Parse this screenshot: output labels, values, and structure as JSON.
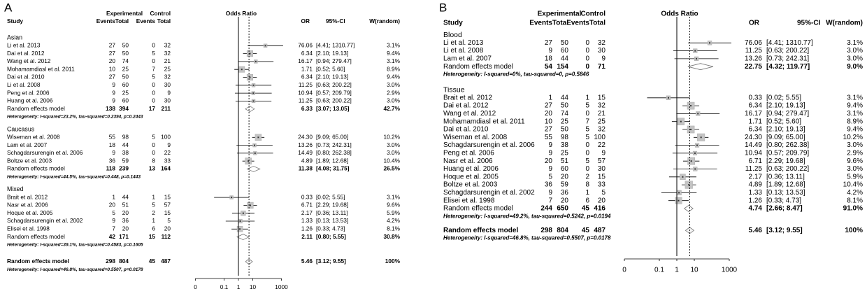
{
  "chart_data": [
    {
      "type": "forest",
      "panel": "A",
      "log_x": true,
      "highlight_color": "#e8564b",
      "box_color": "#c4c4c4",
      "header": {
        "study": "Study",
        "experimental": "Experimental",
        "control": "Control",
        "events": "Events",
        "total": "Total",
        "odds_ratio": "Odds Ratio",
        "or": "OR",
        "ci": "95%-CI",
        "weight": "W(random)"
      },
      "xlim": [
        0.001,
        1000
      ],
      "xticks": [
        {
          "value": 0.001,
          "label": "0"
        },
        0.1,
        1,
        10,
        1000
      ],
      "groups": [
        {
          "name": "Asian",
          "studies": [
            {
              "study": "Li et al. 2013",
              "ee": 27,
              "et": 50,
              "ce": 0,
              "ct": 32,
              "or": 76.06,
              "lo": 4.41,
              "hi": 1310.77,
              "ci_label": "[4.41; 1310.77]",
              "w": 3.1,
              "w_label": "3.1%"
            },
            {
              "study": "Dai et al. 2012",
              "ee": 27,
              "et": 50,
              "ce": 5,
              "ct": 32,
              "or": 6.34,
              "lo": 2.1,
              "hi": 19.13,
              "ci_label": "[2.10; 19.13]",
              "w": 9.4,
              "w_label": "9.4%"
            },
            {
              "study": "Wang et al. 2012",
              "ee": 20,
              "et": 74,
              "ce": 0,
              "ct": 21,
              "or": 16.17,
              "lo": 0.94,
              "hi": 279.47,
              "ci_label": "[0.94; 279.47]",
              "w": 3.1,
              "w_label": "3.1%"
            },
            {
              "study": "Mohamamdiasl et al. 2011",
              "ee": 10,
              "et": 25,
              "ce": 7,
              "ct": 25,
              "or": 1.71,
              "lo": 0.52,
              "hi": 5.6,
              "ci_label": "[0.52; 5.60]",
              "w": 8.9,
              "w_label": "8.9%"
            },
            {
              "study": "Dai et al. 2010",
              "ee": 27,
              "et": 50,
              "ce": 5,
              "ct": 32,
              "or": 6.34,
              "lo": 2.1,
              "hi": 19.13,
              "ci_label": "[2.10; 19.13]",
              "w": 9.4,
              "w_label": "9.4%"
            },
            {
              "study": "Li et al. 2008",
              "ee": 9,
              "et": 60,
              "ce": 0,
              "ct": 30,
              "or": 11.25,
              "lo": 0.63,
              "hi": 200.22,
              "ci_label": "[0.63; 200.22]",
              "w": 3.0,
              "w_label": "3.0%"
            },
            {
              "study": "Peng et al. 2006",
              "ee": 9,
              "et": 25,
              "ce": 0,
              "ct": 9,
              "or": 10.94,
              "lo": 0.57,
              "hi": 209.79,
              "ci_label": "[0.57; 209.79]",
              "w": 2.9,
              "w_label": "2.9%"
            },
            {
              "study": "Huang et al. 2006",
              "ee": 9,
              "et": 60,
              "ce": 0,
              "ct": 30,
              "or": 11.25,
              "lo": 0.63,
              "hi": 200.22,
              "ci_label": "[0.63; 200.22]",
              "w": 3.0,
              "w_label": "3.0%"
            }
          ],
          "random": {
            "study": "Random effects model",
            "ee": 138,
            "et": 394,
            "ce": 17,
            "ct": 211,
            "or": 6.33,
            "lo": 3.07,
            "hi": 13.05,
            "ci_label": "[3.07; 13.05]",
            "w": 42.7,
            "w_label": "42.7%"
          },
          "heterogeneity": "Heterogeneity: I-squared=23.2%, tau-squared=0.2394, p=0.2443"
        },
        {
          "name": "Caucasus",
          "studies": [
            {
              "study": "Wiseman et al. 2008",
              "ee": 55,
              "et": 98,
              "ce": 5,
              "ct": 100,
              "or": 24.3,
              "or_label": "24.30",
              "lo": 9.09,
              "hi": 65,
              "ci_label": "[9.09; 65.00]",
              "w": 10.2,
              "w_label": "10.2%"
            },
            {
              "study": "Lam et al. 2007",
              "ee": 18,
              "et": 44,
              "ce": 0,
              "ct": 9,
              "or": 13.26,
              "lo": 0.73,
              "hi": 242.31,
              "ci_label": "[0.73; 242.31]",
              "w": 3.0,
              "w_label": "3.0%"
            },
            {
              "study": "Schagdarsurengin et al. 2006",
              "ee": 9,
              "et": 38,
              "ce": 0,
              "ct": 22,
              "or": 14.49,
              "lo": 0.8,
              "hi": 262.38,
              "ci_label": "[0.80; 262.38]",
              "w": 3.0,
              "w_label": "3.0%"
            },
            {
              "study": "Boltze et al. 2003",
              "ee": 36,
              "et": 59,
              "ce": 8,
              "ct": 33,
              "or": 4.89,
              "lo": 1.89,
              "hi": 12.68,
              "ci_label": "[1.89; 12.68]",
              "w": 10.4,
              "w_label": "10.4%"
            }
          ],
          "random": {
            "study": "Random effects model",
            "ee": 118,
            "et": 239,
            "ce": 13,
            "ct": 164,
            "or": 11.38,
            "lo": 4.08,
            "hi": 31.75,
            "ci_label": "[4.08; 31.75]",
            "w": 26.5,
            "w_label": "26.5%"
          },
          "heterogeneity": "Heterogeneity: I-squared=44.5%, tau-squared=0.448, p=0.1443"
        },
        {
          "name": "Mixed",
          "studies": [
            {
              "study": "Brait et al. 2012",
              "ee": 1,
              "et": 44,
              "ce": 1,
              "ct": 15,
              "or": 0.33,
              "lo": 0.02,
              "hi": 5.55,
              "ci_label": "[0.02; 5.55]",
              "w": 3.1,
              "w_label": "3.1%"
            },
            {
              "study": "Nasr et al. 2006",
              "ee": 20,
              "et": 51,
              "ce": 5,
              "ct": 57,
              "or": 6.71,
              "lo": 2.29,
              "hi": 19.68,
              "ci_label": "[2.29; 19.68]",
              "w": 9.6,
              "w_label": "9.6%"
            },
            {
              "study": "Hoque et al. 2005",
              "ee": 5,
              "et": 20,
              "ce": 2,
              "ct": 15,
              "or": 2.17,
              "lo": 0.36,
              "hi": 13.11,
              "ci_label": "[0.36; 13.11]",
              "w": 5.9,
              "w_label": "5.9%"
            },
            {
              "study": "Schagdarsurengin et al. 2002",
              "ee": 9,
              "et": 36,
              "ce": 1,
              "ct": 5,
              "or": 1.33,
              "lo": 0.13,
              "hi": 13.53,
              "ci_label": "[0.13; 13.53]",
              "w": 4.2,
              "w_label": "4.2%"
            },
            {
              "study": "Elisei et al. 1998",
              "ee": 7,
              "et": 20,
              "ce": 6,
              "ct": 20,
              "or": 1.26,
              "lo": 0.33,
              "hi": 4.73,
              "ci_label": "[0.33; 4.73]",
              "w": 8.1,
              "w_label": "8.1%"
            }
          ],
          "random": {
            "study": "Random effects model",
            "ee": 42,
            "et": 171,
            "ce": 15,
            "ct": 112,
            "or": 2.11,
            "lo": 0.8,
            "hi": 5.55,
            "ci_label": "[0.80; 5.55]",
            "w": 30.8,
            "w_label": "30.8%"
          },
          "heterogeneity": "Heterogeneity: I-squared=39.1%, tau-squared=0.4583, p=0.1605"
        }
      ],
      "overall": {
        "study": "Random effects model",
        "ee": 298,
        "et": 804,
        "ce": 45,
        "ct": 487,
        "or": 5.46,
        "lo": 3.12,
        "hi": 9.55,
        "ci_label": "[3.12; 9.55]",
        "w": 100,
        "w_label": "100%"
      },
      "overall_heterogeneity": "Heterogeneity: I-squared=46.8%, tau-squared=0.5507, p=0.0178"
    },
    {
      "type": "forest",
      "panel": "B",
      "log_x": true,
      "highlight_color": "#e8564b",
      "box_color": "#c4c4c4",
      "header": {
        "study": "Study",
        "experimental": "Experimental",
        "control": "Control",
        "events": "Events",
        "total": "Total",
        "odds_ratio": "Odds Ratio",
        "or": "OR",
        "ci": "95%-CI",
        "weight": "W(random)"
      },
      "xlim": [
        0.001,
        1000
      ],
      "xticks": [
        {
          "value": 0.001,
          "label": "0"
        },
        0.1,
        1,
        10,
        1000
      ],
      "groups": [
        {
          "name": "Blood",
          "studies": [
            {
              "study": "Li et al. 2013",
              "ee": 27,
              "et": 50,
              "ce": 0,
              "ct": 32,
              "or": 76.06,
              "lo": 4.41,
              "hi": 1310.77,
              "ci_label": "[4.41; 1310.77]",
              "w": 3.1,
              "w_label": "3.1%"
            },
            {
              "study": "Li et al. 2008",
              "ee": 9,
              "et": 60,
              "ce": 0,
              "ct": 30,
              "or": 11.25,
              "lo": 0.63,
              "hi": 200.22,
              "ci_label": "[0.63; 200.22]",
              "w": 3.0,
              "w_label": "3.0%"
            },
            {
              "study": "Lam et al. 2007",
              "ee": 18,
              "et": 44,
              "ce": 0,
              "ct": 9,
              "or": 13.26,
              "lo": 0.73,
              "hi": 242.31,
              "ci_label": "[0.73; 242.31]",
              "w": 3.0,
              "w_label": "3.0%"
            }
          ],
          "random": {
            "study": "Random effects model",
            "ee": 54,
            "et": 154,
            "ce": 0,
            "ct": 71,
            "or": 22.75,
            "lo": 4.32,
            "hi": 119.77,
            "ci_label": "[4.32; 119.77]",
            "w": 9.0,
            "w_label": "9.0%"
          },
          "heterogeneity": "Heterogeneity: I-squared=0%, tau-squared=0, p=0.5846"
        },
        {
          "name": "Tissue",
          "studies": [
            {
              "study": "Brait et al. 2012",
              "ee": 1,
              "et": 44,
              "ce": 1,
              "ct": 15,
              "or": 0.33,
              "lo": 0.02,
              "hi": 5.55,
              "ci_label": "[0.02; 5.55]",
              "w": 3.1,
              "w_label": "3.1%"
            },
            {
              "study": "Dai et al. 2012",
              "ee": 27,
              "et": 50,
              "ce": 5,
              "ct": 32,
              "or": 6.34,
              "lo": 2.1,
              "hi": 19.13,
              "ci_label": "[2.10; 19.13]",
              "w": 9.4,
              "w_label": "9.4%"
            },
            {
              "study": "Wang et al. 2012",
              "ee": 20,
              "et": 74,
              "ce": 0,
              "ct": 21,
              "or": 16.17,
              "lo": 0.94,
              "hi": 279.47,
              "ci_label": "[0.94; 279.47]",
              "w": 3.1,
              "w_label": "3.1%"
            },
            {
              "study": "Mohamamdiasl et al. 2011",
              "ee": 10,
              "et": 25,
              "ce": 7,
              "ct": 25,
              "or": 1.71,
              "lo": 0.52,
              "hi": 5.6,
              "ci_label": "[0.52; 5.60]",
              "w": 8.9,
              "w_label": "8.9%"
            },
            {
              "study": "Dai et al. 2010",
              "ee": 27,
              "et": 50,
              "ce": 5,
              "ct": 32,
              "or": 6.34,
              "lo": 2.1,
              "hi": 19.13,
              "ci_label": "[2.10; 19.13]",
              "w": 9.4,
              "w_label": "9.4%"
            },
            {
              "study": "Wiseman et al. 2008",
              "ee": 55,
              "et": 98,
              "ce": 5,
              "ct": 100,
              "or": 24.3,
              "or_label": "24.30",
              "lo": 9.09,
              "hi": 65,
              "ci_label": "[9.09; 65.00]",
              "w": 10.2,
              "w_label": "10.2%"
            },
            {
              "study": "Schagdarsurengin et al. 2006",
              "ee": 9,
              "et": 38,
              "ce": 0,
              "ct": 22,
              "or": 14.49,
              "lo": 0.8,
              "hi": 262.38,
              "ci_label": "[0.80; 262.38]",
              "w": 3.0,
              "w_label": "3.0%"
            },
            {
              "study": "Peng et al. 2006",
              "ee": 9,
              "et": 25,
              "ce": 0,
              "ct": 9,
              "or": 10.94,
              "lo": 0.57,
              "hi": 209.79,
              "ci_label": "[0.57; 209.79]",
              "w": 2.9,
              "w_label": "2.9%"
            },
            {
              "study": "Nasr et al. 2006",
              "ee": 20,
              "et": 51,
              "ce": 5,
              "ct": 57,
              "or": 6.71,
              "lo": 2.29,
              "hi": 19.68,
              "ci_label": "[2.29; 19.68]",
              "w": 9.6,
              "w_label": "9.6%"
            },
            {
              "study": "Huang et al. 2006",
              "ee": 9,
              "et": 60,
              "ce": 0,
              "ct": 30,
              "or": 11.25,
              "lo": 0.63,
              "hi": 200.22,
              "ci_label": "[0.63; 200.22]",
              "w": 3.0,
              "w_label": "3.0%"
            },
            {
              "study": "Hoque et al. 2005",
              "ee": 5,
              "et": 20,
              "ce": 2,
              "ct": 15,
              "or": 2.17,
              "lo": 0.36,
              "hi": 13.11,
              "ci_label": "[0.36; 13.11]",
              "w": 5.9,
              "w_label": "5.9%"
            },
            {
              "study": "Boltze et al. 2003",
              "ee": 36,
              "et": 59,
              "ce": 8,
              "ct": 33,
              "or": 4.89,
              "lo": 1.89,
              "hi": 12.68,
              "ci_label": "[1.89; 12.68]",
              "w": 10.4,
              "w_label": "10.4%"
            },
            {
              "study": "Schagdarsurengin et al. 2002",
              "ee": 9,
              "et": 36,
              "ce": 1,
              "ct": 5,
              "or": 1.33,
              "lo": 0.13,
              "hi": 13.53,
              "ci_label": "[0.13; 13.53]",
              "w": 4.2,
              "w_label": "4.2%"
            },
            {
              "study": "Elisei et al. 1998",
              "ee": 7,
              "et": 20,
              "ce": 6,
              "ct": 20,
              "or": 1.26,
              "lo": 0.33,
              "hi": 4.73,
              "ci_label": "[0.33; 4.73]",
              "w": 8.1,
              "w_label": "8.1%"
            }
          ],
          "random": {
            "study": "Random effects model",
            "ee": 244,
            "et": 650,
            "ce": 45,
            "ct": 416,
            "or": 4.74,
            "lo": 2.66,
            "hi": 8.47,
            "ci_label": "[2.66; 8.47]",
            "w": 91.0,
            "w_label": "91.0%"
          },
          "heterogeneity": "Heterogeneity: I-squared=49.2%, tau-squared=0.5242, p=0.0194"
        }
      ],
      "overall": {
        "study": "Random effects model",
        "ee": 298,
        "et": 804,
        "ce": 45,
        "ct": 487,
        "or": 5.46,
        "lo": 3.12,
        "hi": 9.55,
        "ci_label": "[3.12; 9.55]",
        "w": 100,
        "w_label": "100%"
      },
      "overall_heterogeneity": "Heterogeneity: I-squared=46.8%, tau-squared=0.5507, p=0.0178"
    }
  ]
}
